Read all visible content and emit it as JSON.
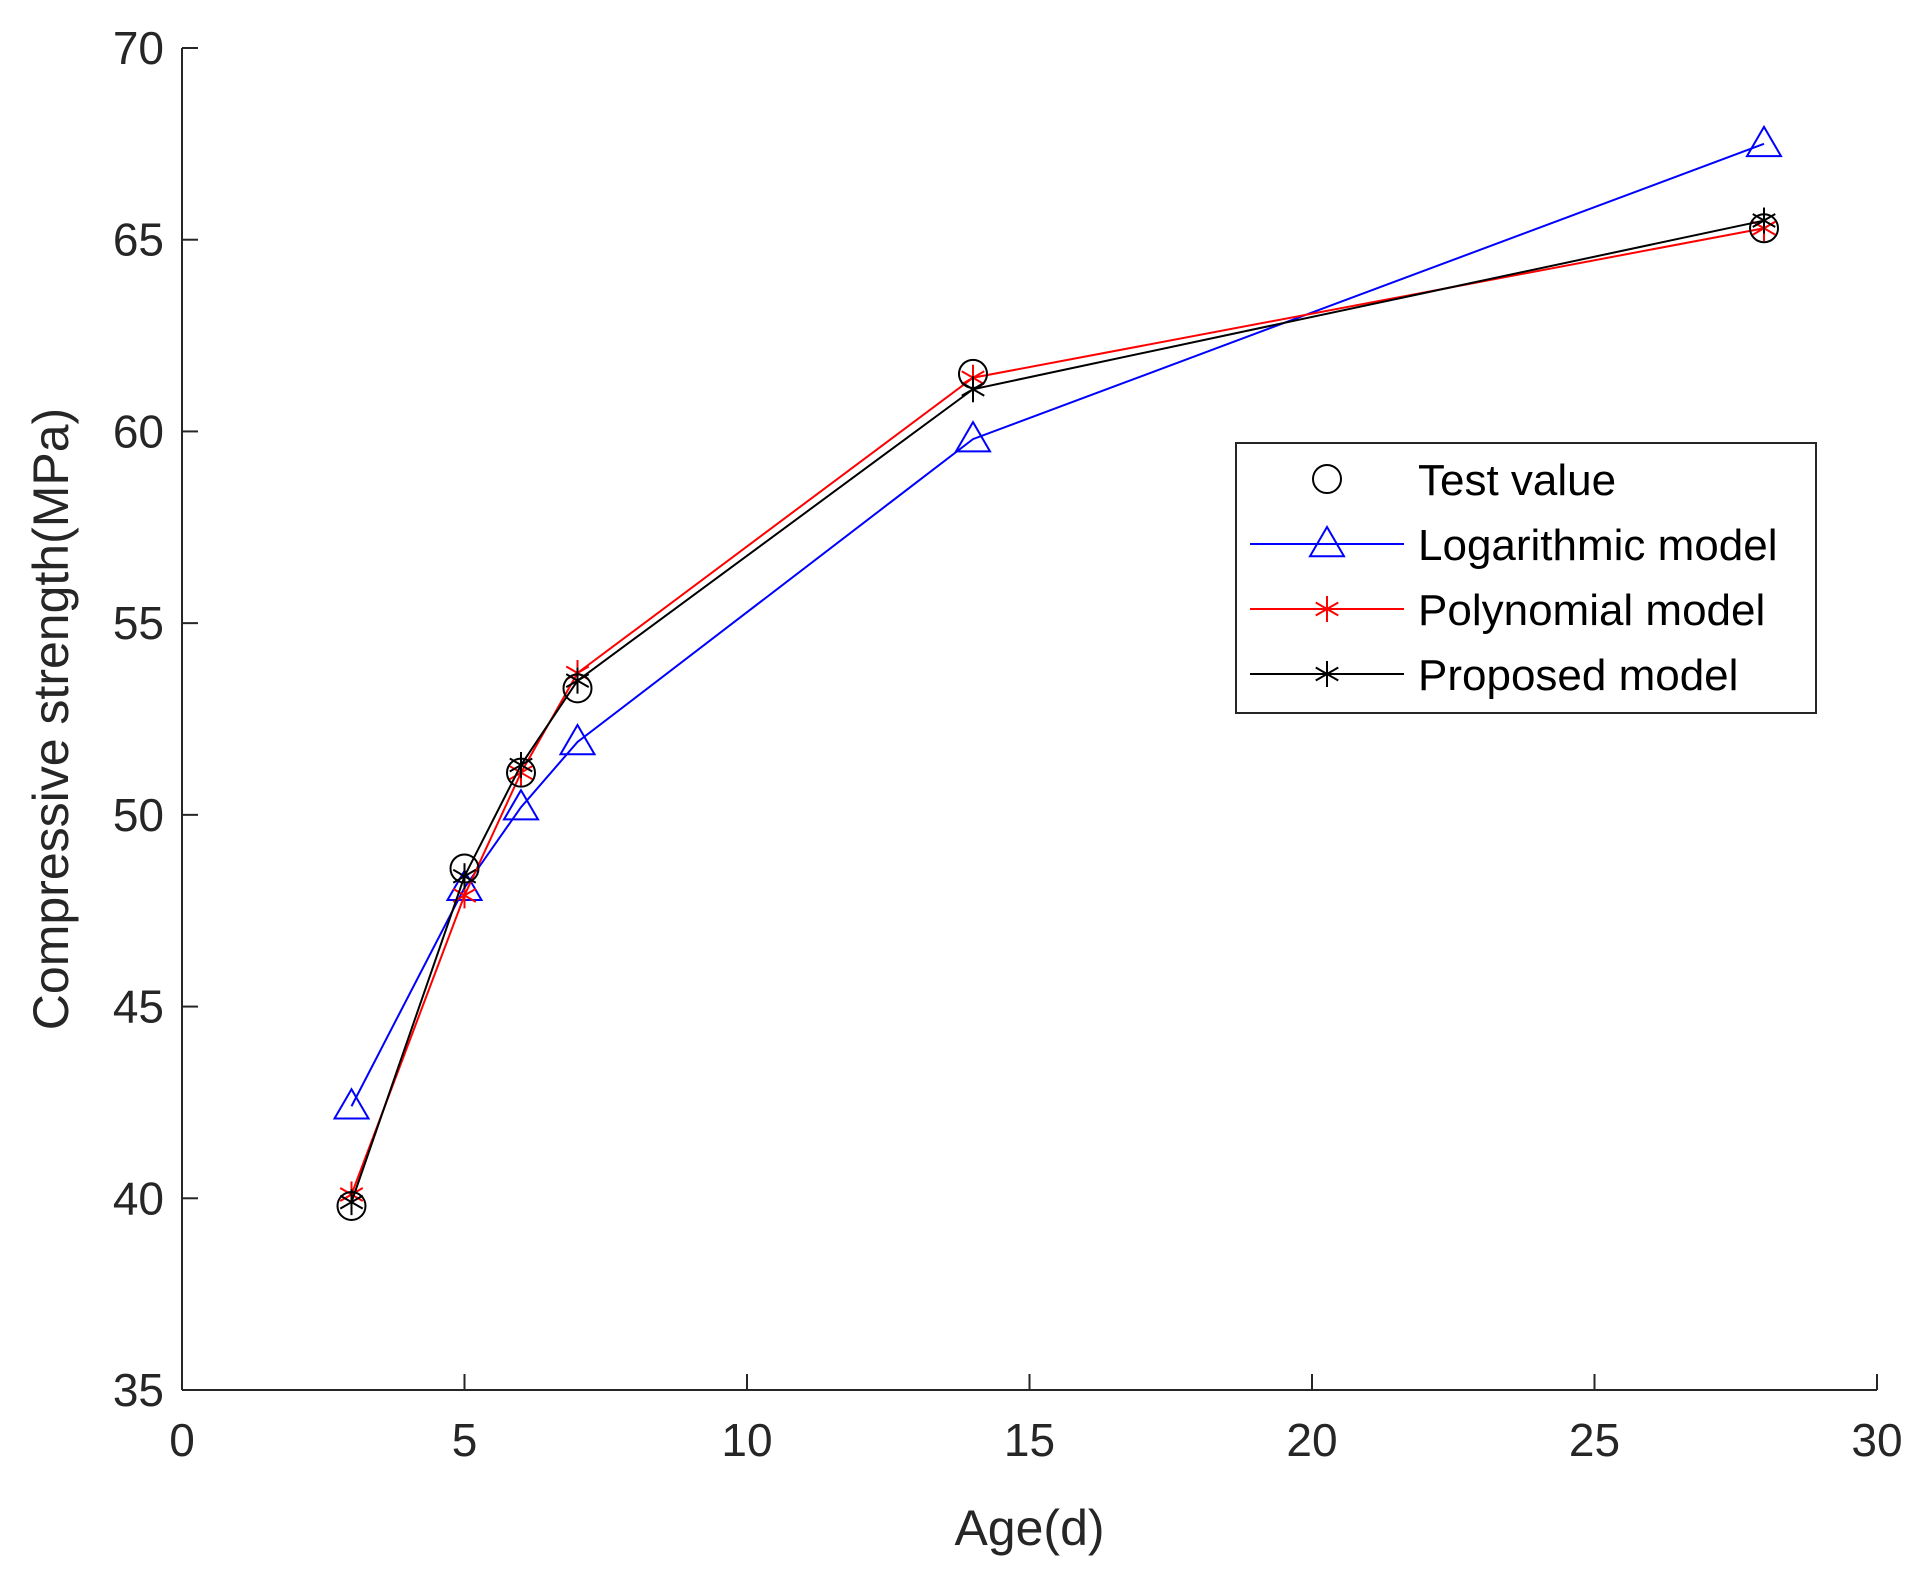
{
  "chart_data": {
    "type": "line",
    "title": "",
    "xlabel": "Age(d)",
    "ylabel": "Compressive strength(MPa)",
    "xlim": [
      0,
      30
    ],
    "ylim": [
      35,
      70
    ],
    "xticks": [
      0,
      5,
      10,
      15,
      20,
      25,
      30
    ],
    "yticks": [
      35,
      40,
      45,
      50,
      55,
      60,
      65,
      70
    ],
    "grid": false,
    "legend_position": "right",
    "x": [
      3,
      5,
      6,
      7,
      14,
      28
    ],
    "series": [
      {
        "name": "Test value",
        "marker": "circle",
        "line": false,
        "color": "#000000",
        "values": [
          39.8,
          48.6,
          51.1,
          53.3,
          61.5,
          65.3
        ]
      },
      {
        "name": "Logarithmic model",
        "marker": "triangle",
        "line": true,
        "color": "#0000ff",
        "values": [
          42.4,
          48.1,
          50.2,
          51.9,
          59.8,
          67.5
        ]
      },
      {
        "name": "Polynomial model",
        "marker": "asterisk",
        "line": true,
        "color": "#ff0000",
        "values": [
          40.1,
          47.9,
          51.1,
          53.7,
          61.4,
          65.3
        ]
      },
      {
        "name": "Proposed model",
        "marker": "asterisk",
        "line": true,
        "color": "#000000",
        "values": [
          39.9,
          48.4,
          51.3,
          53.5,
          61.1,
          65.5
        ]
      }
    ]
  }
}
